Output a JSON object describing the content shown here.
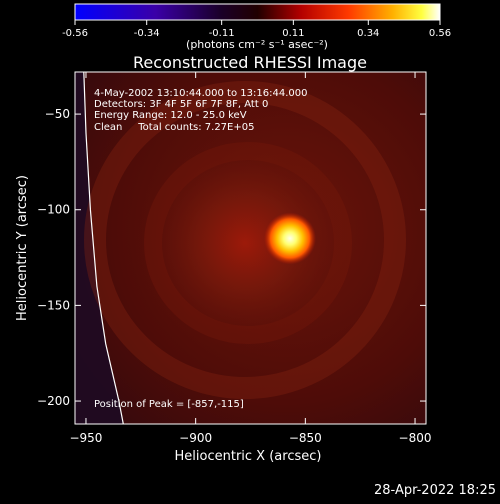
{
  "chart_data": {
    "type": "heatmap",
    "title": "Reconstructed RHESSI Image",
    "colorbar": {
      "min": -0.56,
      "max": 0.56,
      "ticks": [
        "-0.56",
        "-0.34",
        "-0.11",
        "0.11",
        "0.34",
        "0.56"
      ],
      "tick_values": [
        -0.56,
        -0.34,
        -0.11,
        0.11,
        0.34,
        0.56
      ],
      "unit_label": "(photons cm⁻² s⁻¹ asec⁻²)",
      "colormap": "blue-black-red-yellow-white"
    },
    "xlabel": "Heliocentric X (arcsec)",
    "ylabel": "Heliocentric Y (arcsec)",
    "xlim": [
      -955,
      -795
    ],
    "ylim": [
      -212,
      -28
    ],
    "xticks": [
      -950,
      -900,
      -850,
      -800
    ],
    "yticks": [
      -50,
      -100,
      -150,
      -200
    ],
    "annotations": [
      "4-May-2002 13:10:44.000 to 13:16:44.000",
      "Detectors: 3F 4F 5F 6F 7F 8F, Att 0",
      "Energy Range: 12.0 - 25.0 keV",
      "Clean     Total counts: 7.27E+05"
    ],
    "peak_label": "Position of Peak = [-857,-115]",
    "peak": {
      "x": -857,
      "y": -115
    },
    "limb_curve": [
      {
        "x": -951,
        "y": -28
      },
      {
        "x": -950,
        "y": -60
      },
      {
        "x": -948,
        "y": -100
      },
      {
        "x": -945,
        "y": -140
      },
      {
        "x": -941,
        "y": -170
      },
      {
        "x": -935,
        "y": -200
      },
      {
        "x": -933,
        "y": -212
      }
    ],
    "colors": {
      "background": "#000000",
      "sun_field": "#5a0f08",
      "peak_core": "#ffffe0",
      "limb": "#ffffff",
      "off_disk": "#1e0a22"
    }
  },
  "footer": {
    "timestamp": "28-Apr-2022 18:25"
  }
}
